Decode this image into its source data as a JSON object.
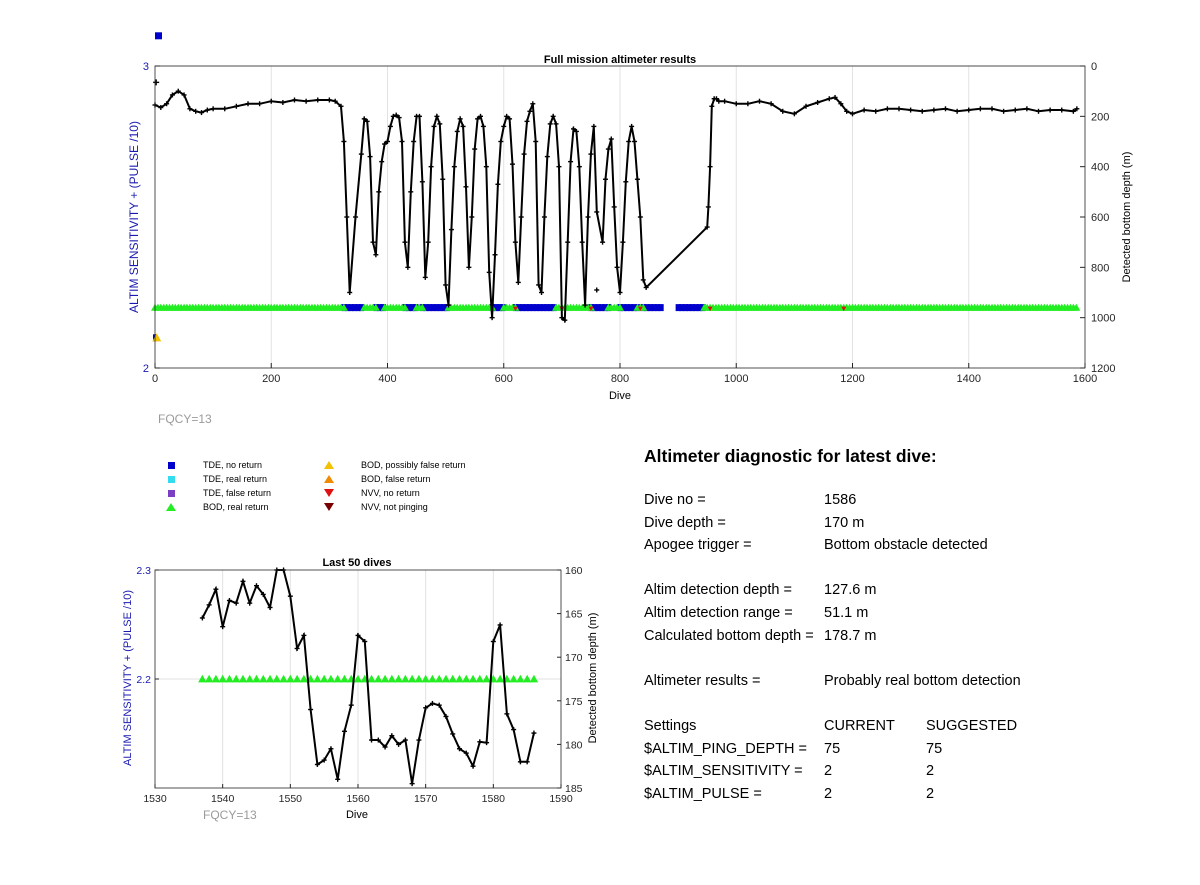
{
  "top_chart": {
    "title": "Full mission altimeter results",
    "xlabel": "Dive",
    "ylabel_left": "ALTIM SENSITIVITY + (PULSE /10)",
    "ylabel_right": "Detected bottom depth (m)",
    "x_ticks": [
      "0",
      "200",
      "400",
      "600",
      "800",
      "1000",
      "1200",
      "1400",
      "1600"
    ],
    "y_left_ticks": [
      "3",
      "2"
    ],
    "y_right_ticks": [
      "0",
      "200",
      "400",
      "600",
      "800",
      "1000",
      "1200"
    ],
    "fqcy_label": "FQCY=13"
  },
  "bottom_chart": {
    "title": "Last 50 dives",
    "xlabel": "Dive",
    "ylabel_left": "ALTIM SENSITIVITY + (PULSE /10)",
    "ylabel_right": "Detected bottom depth (m)",
    "x_ticks": [
      "1530",
      "1540",
      "1550",
      "1560",
      "1570",
      "1580",
      "1590"
    ],
    "y_left_ticks": [
      "2.3",
      "2.2"
    ],
    "y_right_ticks": [
      "160",
      "165",
      "170",
      "175",
      "180",
      "185"
    ],
    "fqcy_label": "FQCY=13"
  },
  "legend": [
    {
      "label": "TDE, no return",
      "symbol": "square",
      "color": "#0000cc"
    },
    {
      "label": "TDE, real return",
      "symbol": "square",
      "color": "#33ddee"
    },
    {
      "label": "TDE, false return",
      "symbol": "square",
      "color": "#7b3fc4"
    },
    {
      "label": "BOD, real return",
      "symbol": "triangle-up",
      "color": "#22ee22"
    },
    {
      "label": "BOD, possibly false return",
      "symbol": "triangle-up",
      "color": "#f2c200"
    },
    {
      "label": "BOD, false return",
      "symbol": "triangle-up",
      "color": "#f08a00"
    },
    {
      "label": "NVV, no return",
      "symbol": "triangle-down",
      "color": "#e01010"
    },
    {
      "label": "NVV, not pinging",
      "symbol": "triangle-down",
      "color": "#7a0000"
    }
  ],
  "diagnostic": {
    "title": "Altimeter diagnostic for latest dive:",
    "dive_no_label": "Dive no =",
    "dive_no": "1586",
    "dive_depth_label": "Dive depth =",
    "dive_depth": "170 m",
    "apogee_label": "Apogee trigger =",
    "apogee": "Bottom obstacle detected",
    "altim_det_depth_label": "Altim detection depth =",
    "altim_det_depth": "127.6 m",
    "altim_det_range_label": "Altim detection range =",
    "altim_det_range": "51.1 m",
    "calc_bottom_label": "Calculated bottom depth =",
    "calc_bottom": "178.7 m",
    "results_label": "Altimeter results =",
    "results": "Probably real bottom detection",
    "settings_label": "Settings",
    "current_label": "CURRENT",
    "suggested_label": "SUGGESTED",
    "settings": [
      {
        "name": "$ALTIM_PING_DEPTH =",
        "current": "75",
        "suggested": "75"
      },
      {
        "name": "$ALTIM_SENSITIVITY =",
        "current": "2",
        "suggested": "2"
      },
      {
        "name": "$ALTIM_PULSE =",
        "current": "2",
        "suggested": "2"
      }
    ]
  },
  "chart_data": [
    {
      "type": "line",
      "title": "Full mission altimeter results",
      "xlabel": "Dive",
      "ylabel": "ALTIM SENSITIVITY + (PULSE /10)",
      "ylabel_right": "Detected bottom depth (m)",
      "xlim": [
        0,
        1600
      ],
      "ylim": [
        2,
        3
      ],
      "ylim_right": [
        1200,
        0
      ],
      "grid": true,
      "series": [
        {
          "name": "Detected bottom depth",
          "axis": "right",
          "color": "#000000",
          "x": [
            0,
            10,
            20,
            30,
            40,
            50,
            60,
            70,
            80,
            90,
            100,
            120,
            140,
            160,
            180,
            200,
            220,
            240,
            260,
            280,
            300,
            310,
            320,
            325,
            330,
            335,
            345,
            355,
            360,
            365,
            370,
            375,
            380,
            385,
            390,
            395,
            400,
            405,
            410,
            415,
            420,
            425,
            430,
            435,
            440,
            445,
            450,
            455,
            460,
            465,
            470,
            475,
            480,
            485,
            490,
            495,
            500,
            505,
            510,
            515,
            520,
            525,
            530,
            535,
            540,
            545,
            550,
            555,
            560,
            565,
            570,
            575,
            580,
            585,
            590,
            595,
            600,
            605,
            610,
            615,
            620,
            625,
            630,
            635,
            640,
            645,
            650,
            655,
            660,
            665,
            670,
            675,
            680,
            685,
            690,
            695,
            700,
            705,
            710,
            715,
            720,
            725,
            730,
            735,
            740,
            745,
            750,
            755,
            760,
            770,
            775,
            780,
            785,
            790,
            795,
            800,
            805,
            810,
            815,
            820,
            825,
            830,
            835,
            840,
            845,
            950,
            952,
            955,
            958,
            962,
            966,
            970,
            980,
            1000,
            1020,
            1040,
            1060,
            1080,
            1100,
            1120,
            1140,
            1160,
            1170,
            1180,
            1190,
            1200,
            1220,
            1240,
            1260,
            1280,
            1300,
            1320,
            1340,
            1360,
            1380,
            1400,
            1420,
            1440,
            1460,
            1480,
            1500,
            1520,
            1540,
            1560,
            1580,
            1586
          ],
          "y": [
            155,
            165,
            150,
            115,
            100,
            115,
            170,
            180,
            185,
            175,
            170,
            170,
            160,
            150,
            150,
            140,
            145,
            135,
            140,
            135,
            135,
            140,
            160,
            300,
            600,
            900,
            600,
            350,
            210,
            220,
            360,
            700,
            750,
            500,
            380,
            310,
            300,
            240,
            200,
            195,
            205,
            300,
            700,
            800,
            500,
            300,
            200,
            200,
            460,
            840,
            700,
            400,
            240,
            200,
            230,
            450,
            870,
            950,
            650,
            400,
            260,
            210,
            240,
            480,
            800,
            600,
            330,
            210,
            200,
            240,
            400,
            820,
            1000,
            750,
            470,
            300,
            240,
            200,
            210,
            390,
            700,
            860,
            600,
            350,
            220,
            180,
            150,
            300,
            870,
            900,
            600,
            360,
            230,
            200,
            230,
            400,
            1000,
            1010,
            700,
            380,
            250,
            260,
            400,
            700,
            950,
            600,
            350,
            240,
            580,
            700,
            450,
            330,
            290,
            560,
            800,
            900,
            700,
            460,
            300,
            240,
            300,
            450,
            600,
            850,
            880,
            640,
            560,
            400,
            160,
            130,
            130,
            140,
            140,
            150,
            150,
            140,
            150,
            180,
            190,
            160,
            145,
            130,
            125,
            150,
            180,
            190,
            175,
            180,
            170,
            170,
            175,
            180,
            175,
            170,
            180,
            175,
            170,
            170,
            180,
            175,
            170,
            180,
            175,
            175,
            180,
            170
          ]
        },
        {
          "name": "BOD, real return",
          "axis": "left",
          "color": "#22ee22",
          "segments": [
            [
              0,
              325
            ],
            [
              360,
              380
            ],
            [
              395,
              430
            ],
            [
              450,
              460
            ],
            [
              505,
              580
            ],
            [
              600,
              620
            ],
            [
              690,
              750
            ],
            [
              780,
              800
            ],
            [
              830,
              840
            ],
            [
              945,
              1586
            ]
          ],
          "y": 2.2
        },
        {
          "name": "TDE, no return",
          "axis": "left",
          "color": "#0000cc",
          "segments": [
            [
              325,
              360
            ],
            [
              380,
              395
            ],
            [
              430,
              450
            ],
            [
              460,
              505
            ],
            [
              580,
              600
            ],
            [
              620,
              690
            ],
            [
              750,
              780
            ],
            [
              800,
              830
            ],
            [
              840,
              870
            ],
            [
              900,
              945
            ]
          ],
          "y": 2.2
        }
      ]
    },
    {
      "type": "line",
      "title": "Last 50 dives",
      "xlabel": "Dive",
      "ylabel": "ALTIM SENSITIVITY + (PULSE /10)",
      "ylabel_right": "Detected bottom depth (m)",
      "xlim": [
        1530,
        1590
      ],
      "ylim": [
        2.1,
        2.3
      ],
      "ylim_right": [
        185,
        160
      ],
      "grid": true,
      "series": [
        {
          "name": "Detected bottom depth",
          "axis": "right",
          "color": "#000000",
          "x": [
            1537,
            1538,
            1539,
            1540,
            1541,
            1542,
            1543,
            1544,
            1545,
            1546,
            1547,
            1548,
            1549,
            1550,
            1551,
            1552,
            1553,
            1554,
            1555,
            1556,
            1557,
            1558,
            1559,
            1560,
            1561,
            1562,
            1563,
            1564,
            1565,
            1566,
            1567,
            1568,
            1569,
            1570,
            1571,
            1572,
            1573,
            1574,
            1575,
            1576,
            1577,
            1578,
            1579,
            1580,
            1581,
            1582,
            1583,
            1584,
            1585,
            1586
          ],
          "y": [
            165.5,
            164,
            162.2,
            166.5,
            163.5,
            163.8,
            161.3,
            163.8,
            161.8,
            162.8,
            164.3,
            160,
            160,
            163,
            169,
            167.5,
            176,
            182.3,
            181.8,
            180.5,
            184,
            178.5,
            175.5,
            167.5,
            168.2,
            179.5,
            179.5,
            180.3,
            179,
            180,
            179.5,
            184.5,
            179.5,
            175.8,
            175.3,
            175.5,
            176.8,
            178.8,
            180.5,
            181,
            182.5,
            179.7,
            179.8,
            168.2,
            166.3,
            176.5,
            178.3,
            182,
            182,
            178.7
          ]
        },
        {
          "name": "BOD, real return",
          "axis": "left",
          "color": "#22ee22",
          "x_range": [
            1537,
            1586
          ],
          "y": 2.2
        }
      ]
    }
  ]
}
